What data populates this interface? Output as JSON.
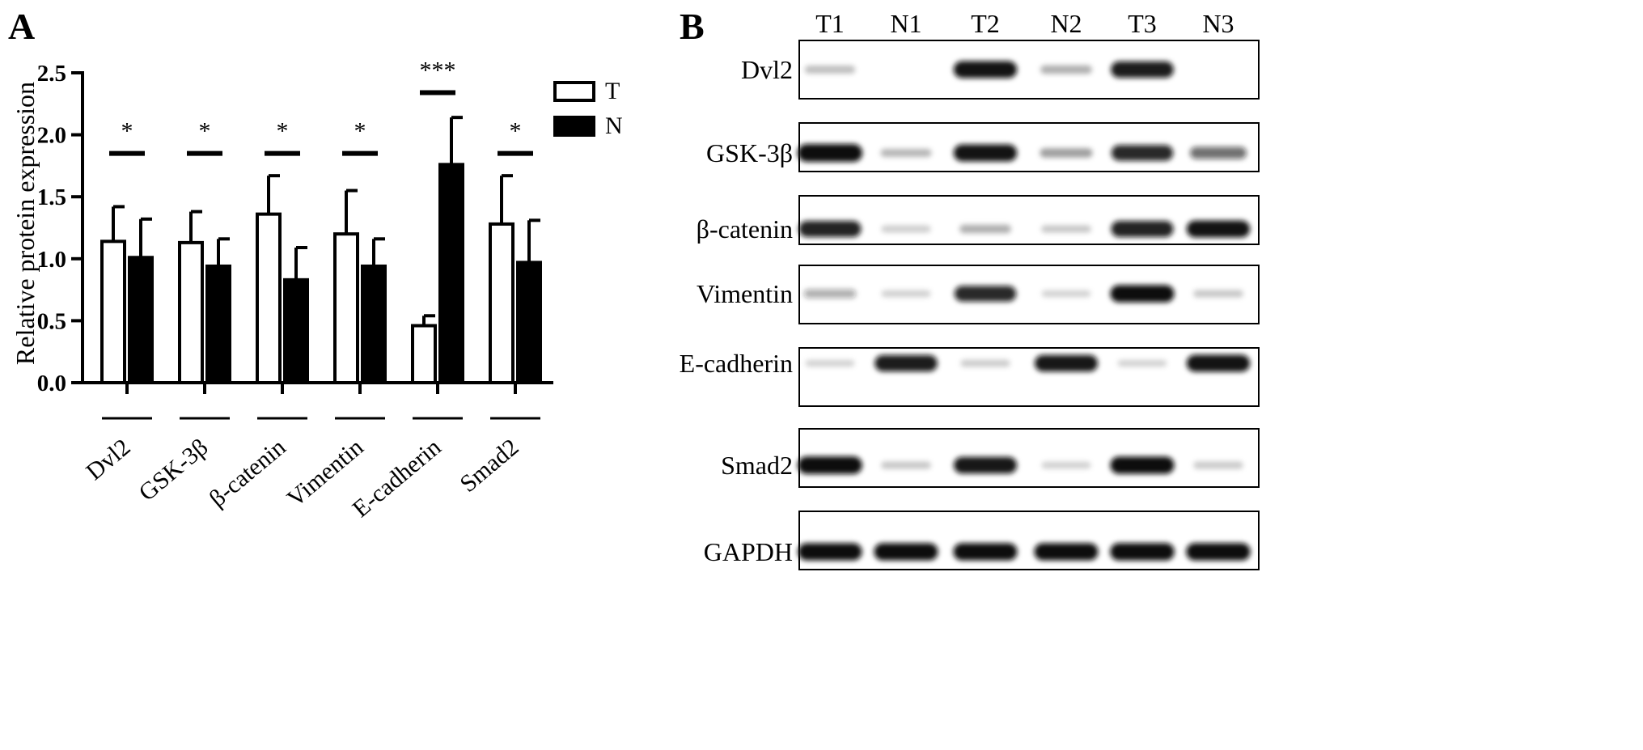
{
  "panel_a": {
    "label": "A",
    "chart_data": {
      "type": "bar",
      "categories": [
        "Dvl2",
        "GSK-3β",
        "β-catenin",
        "Vimentin",
        "E-cadherin",
        "Smad2"
      ],
      "series": [
        {
          "name": "T",
          "values": [
            1.14,
            1.13,
            1.36,
            1.2,
            0.46,
            1.28
          ],
          "errors": [
            0.28,
            0.25,
            0.31,
            0.35,
            0.08,
            0.39
          ],
          "fill": "#ffffff"
        },
        {
          "name": "N",
          "values": [
            1.01,
            0.94,
            0.83,
            0.94,
            1.76,
            0.97
          ],
          "errors": [
            0.31,
            0.22,
            0.26,
            0.22,
            0.38,
            0.34
          ],
          "fill": "#000000"
        }
      ],
      "significance": [
        {
          "label": "*",
          "y": 1.85
        },
        {
          "label": "*",
          "y": 1.85
        },
        {
          "label": "*",
          "y": 1.85
        },
        {
          "label": "*",
          "y": 1.85
        },
        {
          "label": "***",
          "y": 2.34
        },
        {
          "label": "*",
          "y": 1.85
        }
      ],
      "title": "",
      "xlabel": "",
      "ylabel": "Relative protein expression",
      "ylim": [
        0,
        2.5
      ],
      "yticks": [
        "0.0",
        "0.5",
        "1.0",
        "1.5",
        "2.0",
        "2.5"
      ],
      "legend": "top-right",
      "grid": false
    }
  },
  "panel_b": {
    "label": "B",
    "lanes": [
      "T1",
      "N1",
      "T2",
      "N2",
      "T3",
      "N3"
    ],
    "blots": [
      {
        "protein": "Dvl2",
        "bands": [
          0.12,
          0.0,
          0.92,
          0.18,
          0.88,
          0.0
        ]
      },
      {
        "protein": "GSK-3β",
        "bands": [
          1.0,
          0.15,
          0.92,
          0.25,
          0.82,
          0.5
        ]
      },
      {
        "protein": "β-catenin",
        "bands": [
          0.85,
          0.05,
          0.18,
          0.08,
          0.85,
          0.92
        ]
      },
      {
        "protein": "Vimentin",
        "bands": [
          0.22,
          0.04,
          0.82,
          0.03,
          0.95,
          0.08
        ]
      },
      {
        "protein": "E-cadherin",
        "bands": [
          0.03,
          0.88,
          0.06,
          0.9,
          0.03,
          0.92
        ]
      },
      {
        "protein": "Smad2",
        "bands": [
          0.98,
          0.08,
          0.9,
          0.04,
          0.95,
          0.07
        ]
      },
      {
        "protein": "GAPDH",
        "bands": [
          0.95,
          0.95,
          0.95,
          0.95,
          0.97,
          0.97
        ]
      }
    ]
  }
}
